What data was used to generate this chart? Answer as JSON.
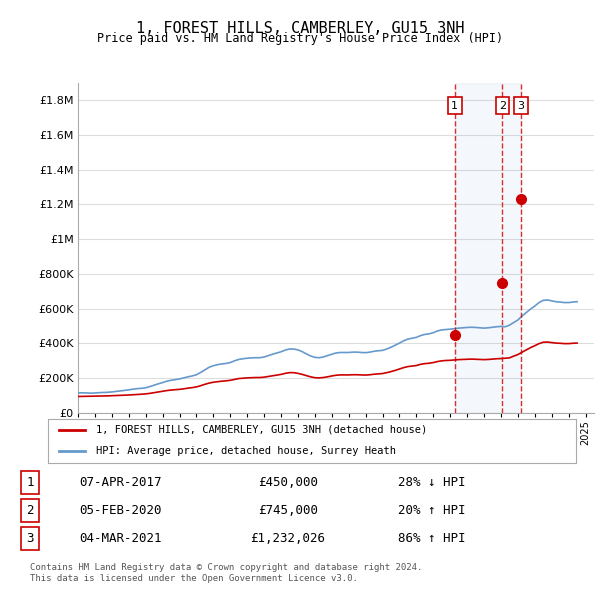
{
  "title": "1, FOREST HILLS, CAMBERLEY, GU15 3NH",
  "subtitle": "Price paid vs. HM Land Registry's House Price Index (HPI)",
  "ylabel_ticks": [
    "£0",
    "£200K",
    "£400K",
    "£600K",
    "£800K",
    "£1M",
    "£1.2M",
    "£1.4M",
    "£1.6M",
    "£1.8M"
  ],
  "ytick_vals": [
    0,
    200000,
    400000,
    600000,
    800000,
    1000000,
    1200000,
    1400000,
    1600000,
    1800000
  ],
  "ylim": [
    0,
    1900000
  ],
  "xlim_start": 1995.0,
  "xlim_end": 2025.5,
  "hpi_color": "#6699cc",
  "price_paid_color": "#cc0000",
  "sale_line_color": "#cc0000",
  "background_color": "#ffffff",
  "grid_color": "#dddddd",
  "legend_label_red": "1, FOREST HILLS, CAMBERLEY, GU15 3NH (detached house)",
  "legend_label_blue": "HPI: Average price, detached house, Surrey Heath",
  "sale_events": [
    {
      "num": 1,
      "year": 2017.27,
      "price": 450000,
      "date": "07-APR-2017",
      "pct": "28%",
      "dir": "↓"
    },
    {
      "num": 2,
      "year": 2020.09,
      "price": 745000,
      "date": "05-FEB-2020",
      "pct": "20%",
      "dir": "↑"
    },
    {
      "num": 3,
      "year": 2021.17,
      "price": 1232026,
      "date": "04-MAR-2021",
      "pct": "86%",
      "dir": "↑"
    }
  ],
  "footer": "Contains HM Land Registry data © Crown copyright and database right 2024.\nThis data is licensed under the Open Government Licence v3.0.",
  "hpi_data": [
    [
      1995.0,
      115000
    ],
    [
      1995.25,
      116000
    ],
    [
      1995.5,
      115500
    ],
    [
      1995.75,
      114000
    ],
    [
      1996.0,
      115000
    ],
    [
      1996.25,
      117000
    ],
    [
      1996.5,
      118000
    ],
    [
      1996.75,
      119000
    ],
    [
      1997.0,
      121000
    ],
    [
      1997.25,
      124000
    ],
    [
      1997.5,
      127000
    ],
    [
      1997.75,
      130000
    ],
    [
      1998.0,
      133000
    ],
    [
      1998.25,
      137000
    ],
    [
      1998.5,
      140000
    ],
    [
      1998.75,
      142000
    ],
    [
      1999.0,
      145000
    ],
    [
      1999.25,
      152000
    ],
    [
      1999.5,
      160000
    ],
    [
      1999.75,
      168000
    ],
    [
      2000.0,
      175000
    ],
    [
      2000.25,
      183000
    ],
    [
      2000.5,
      188000
    ],
    [
      2000.75,
      192000
    ],
    [
      2001.0,
      196000
    ],
    [
      2001.25,
      202000
    ],
    [
      2001.5,
      208000
    ],
    [
      2001.75,
      213000
    ],
    [
      2002.0,
      220000
    ],
    [
      2002.25,
      233000
    ],
    [
      2002.5,
      248000
    ],
    [
      2002.75,
      263000
    ],
    [
      2003.0,
      272000
    ],
    [
      2003.25,
      278000
    ],
    [
      2003.5,
      282000
    ],
    [
      2003.75,
      285000
    ],
    [
      2004.0,
      290000
    ],
    [
      2004.25,
      300000
    ],
    [
      2004.5,
      308000
    ],
    [
      2004.75,
      312000
    ],
    [
      2005.0,
      315000
    ],
    [
      2005.25,
      317000
    ],
    [
      2005.5,
      318000
    ],
    [
      2005.75,
      318000
    ],
    [
      2006.0,
      322000
    ],
    [
      2006.25,
      330000
    ],
    [
      2006.5,
      338000
    ],
    [
      2006.75,
      345000
    ],
    [
      2007.0,
      352000
    ],
    [
      2007.25,
      362000
    ],
    [
      2007.5,
      368000
    ],
    [
      2007.75,
      368000
    ],
    [
      2008.0,
      363000
    ],
    [
      2008.25,
      353000
    ],
    [
      2008.5,
      340000
    ],
    [
      2008.75,
      328000
    ],
    [
      2009.0,
      320000
    ],
    [
      2009.25,
      318000
    ],
    [
      2009.5,
      322000
    ],
    [
      2009.75,
      330000
    ],
    [
      2010.0,
      338000
    ],
    [
      2010.25,
      345000
    ],
    [
      2010.5,
      348000
    ],
    [
      2010.75,
      348000
    ],
    [
      2011.0,
      348000
    ],
    [
      2011.25,
      350000
    ],
    [
      2011.5,
      350000
    ],
    [
      2011.75,
      348000
    ],
    [
      2012.0,
      347000
    ],
    [
      2012.25,
      350000
    ],
    [
      2012.5,
      355000
    ],
    [
      2012.75,
      358000
    ],
    [
      2013.0,
      360000
    ],
    [
      2013.25,
      368000
    ],
    [
      2013.5,
      378000
    ],
    [
      2013.75,
      390000
    ],
    [
      2014.0,
      402000
    ],
    [
      2014.25,
      415000
    ],
    [
      2014.5,
      425000
    ],
    [
      2014.75,
      430000
    ],
    [
      2015.0,
      435000
    ],
    [
      2015.25,
      445000
    ],
    [
      2015.5,
      452000
    ],
    [
      2015.75,
      455000
    ],
    [
      2016.0,
      462000
    ],
    [
      2016.25,
      472000
    ],
    [
      2016.5,
      478000
    ],
    [
      2016.75,
      480000
    ],
    [
      2017.0,
      482000
    ],
    [
      2017.25,
      485000
    ],
    [
      2017.5,
      488000
    ],
    [
      2017.75,
      490000
    ],
    [
      2018.0,
      492000
    ],
    [
      2018.25,
      493000
    ],
    [
      2018.5,
      492000
    ],
    [
      2018.75,
      490000
    ],
    [
      2019.0,
      488000
    ],
    [
      2019.25,
      490000
    ],
    [
      2019.5,
      493000
    ],
    [
      2019.75,
      496000
    ],
    [
      2020.0,
      498000
    ],
    [
      2020.25,
      496000
    ],
    [
      2020.5,
      505000
    ],
    [
      2020.75,
      520000
    ],
    [
      2021.0,
      535000
    ],
    [
      2021.25,
      558000
    ],
    [
      2021.5,
      578000
    ],
    [
      2021.75,
      598000
    ],
    [
      2022.0,
      615000
    ],
    [
      2022.25,
      635000
    ],
    [
      2022.5,
      648000
    ],
    [
      2022.75,
      650000
    ],
    [
      2023.0,
      645000
    ],
    [
      2023.25,
      640000
    ],
    [
      2023.5,
      638000
    ],
    [
      2023.75,
      635000
    ],
    [
      2024.0,
      635000
    ],
    [
      2024.25,
      638000
    ],
    [
      2024.5,
      640000
    ]
  ],
  "price_paid_data": [
    [
      1995.0,
      95000
    ],
    [
      1995.25,
      95500
    ],
    [
      1995.5,
      96000
    ],
    [
      1995.75,
      96500
    ],
    [
      1996.0,
      97000
    ],
    [
      1996.25,
      97500
    ],
    [
      1996.5,
      98000
    ],
    [
      1996.75,
      98500
    ],
    [
      1997.0,
      99500
    ],
    [
      1997.25,
      100500
    ],
    [
      1997.5,
      101500
    ],
    [
      1997.75,
      102500
    ],
    [
      1998.0,
      103500
    ],
    [
      1998.25,
      105000
    ],
    [
      1998.5,
      106500
    ],
    [
      1998.75,
      108000
    ],
    [
      1999.0,
      110000
    ],
    [
      1999.25,
      113000
    ],
    [
      1999.5,
      117000
    ],
    [
      1999.75,
      121000
    ],
    [
      2000.0,
      125000
    ],
    [
      2000.25,
      129000
    ],
    [
      2000.5,
      132000
    ],
    [
      2000.75,
      134000
    ],
    [
      2001.0,
      136000
    ],
    [
      2001.25,
      139000
    ],
    [
      2001.5,
      143000
    ],
    [
      2001.75,
      146000
    ],
    [
      2002.0,
      150000
    ],
    [
      2002.25,
      157000
    ],
    [
      2002.5,
      165000
    ],
    [
      2002.75,
      172000
    ],
    [
      2003.0,
      177000
    ],
    [
      2003.25,
      180000
    ],
    [
      2003.5,
      183000
    ],
    [
      2003.75,
      185000
    ],
    [
      2004.0,
      188000
    ],
    [
      2004.25,
      193000
    ],
    [
      2004.5,
      198000
    ],
    [
      2004.75,
      200000
    ],
    [
      2005.0,
      202000
    ],
    [
      2005.25,
      203000
    ],
    [
      2005.5,
      204000
    ],
    [
      2005.75,
      204000
    ],
    [
      2006.0,
      206000
    ],
    [
      2006.25,
      210000
    ],
    [
      2006.5,
      214000
    ],
    [
      2006.75,
      218000
    ],
    [
      2007.0,
      222000
    ],
    [
      2007.25,
      228000
    ],
    [
      2007.5,
      232000
    ],
    [
      2007.75,
      232000
    ],
    [
      2008.0,
      228000
    ],
    [
      2008.25,
      222000
    ],
    [
      2008.5,
      215000
    ],
    [
      2008.75,
      208000
    ],
    [
      2009.0,
      203000
    ],
    [
      2009.25,
      202000
    ],
    [
      2009.5,
      204000
    ],
    [
      2009.75,
      208000
    ],
    [
      2010.0,
      213000
    ],
    [
      2010.25,
      217000
    ],
    [
      2010.5,
      219000
    ],
    [
      2010.75,
      219000
    ],
    [
      2011.0,
      219000
    ],
    [
      2011.25,
      220000
    ],
    [
      2011.5,
      220000
    ],
    [
      2011.75,
      219000
    ],
    [
      2012.0,
      218000
    ],
    [
      2012.25,
      220000
    ],
    [
      2012.5,
      223000
    ],
    [
      2012.75,
      225000
    ],
    [
      2013.0,
      227000
    ],
    [
      2013.25,
      232000
    ],
    [
      2013.5,
      238000
    ],
    [
      2013.75,
      245000
    ],
    [
      2014.0,
      253000
    ],
    [
      2014.25,
      261000
    ],
    [
      2014.5,
      267000
    ],
    [
      2014.75,
      270000
    ],
    [
      2015.0,
      273000
    ],
    [
      2015.25,
      280000
    ],
    [
      2015.5,
      284000
    ],
    [
      2015.75,
      286000
    ],
    [
      2016.0,
      290000
    ],
    [
      2016.25,
      296000
    ],
    [
      2016.5,
      300000
    ],
    [
      2016.75,
      302000
    ],
    [
      2017.0,
      303000
    ],
    [
      2017.27,
      450000
    ],
    [
      2017.5,
      307000
    ],
    [
      2017.75,
      308000
    ],
    [
      2018.0,
      309000
    ],
    [
      2018.25,
      310000
    ],
    [
      2018.5,
      309000
    ],
    [
      2018.75,
      308000
    ],
    [
      2019.0,
      307000
    ],
    [
      2019.25,
      308000
    ],
    [
      2019.5,
      310000
    ],
    [
      2019.75,
      312000
    ],
    [
      2020.0,
      313000
    ],
    [
      2020.09,
      745000
    ],
    [
      2020.5,
      317000
    ],
    [
      2020.75,
      327000
    ],
    [
      2021.0,
      336000
    ],
    [
      2021.17,
      1232026
    ],
    [
      2021.5,
      363000
    ],
    [
      2021.75,
      376000
    ],
    [
      2022.0,
      387000
    ],
    [
      2022.25,
      399000
    ],
    [
      2022.5,
      407000
    ],
    [
      2022.75,
      408000
    ],
    [
      2023.0,
      405000
    ],
    [
      2023.25,
      402000
    ],
    [
      2023.5,
      401000
    ],
    [
      2023.75,
      399000
    ],
    [
      2024.0,
      399000
    ],
    [
      2024.25,
      401000
    ],
    [
      2024.5,
      402000
    ]
  ]
}
